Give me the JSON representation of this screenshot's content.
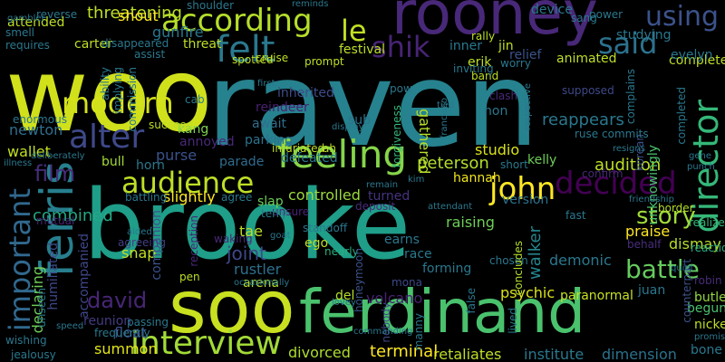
{
  "colors": {
    "background": "#000000",
    "palette": [
      "#fde725",
      "#b5de2b",
      "#6ece58",
      "#35b779",
      "#1f9e89",
      "#26828e",
      "#31688e",
      "#3e4989",
      "#482878",
      "#440154"
    ]
  },
  "words": [
    {
      "text": "raven",
      "color": "#26828e"
    },
    {
      "text": "woo",
      "color": "#d0e11c"
    },
    {
      "text": "brooke",
      "color": "#1f9e89"
    },
    {
      "text": "ferdinand",
      "color": "#4ac16d"
    },
    {
      "text": "soo",
      "color": "#c8e020"
    },
    {
      "text": "rooney",
      "color": "#482878"
    },
    {
      "text": "according",
      "color": "#b5de2b"
    },
    {
      "text": "modern",
      "color": "#d5e21a"
    },
    {
      "text": "felt",
      "color": "#2a788e"
    },
    {
      "text": "le",
      "color": "#c2df23"
    },
    {
      "text": "shik",
      "color": "#482475"
    },
    {
      "text": "said",
      "color": "#2c728e"
    },
    {
      "text": "using",
      "color": "#3b528b"
    },
    {
      "text": "alter",
      "color": "#3e4989"
    },
    {
      "text": "feeling",
      "color": "#86d549"
    },
    {
      "text": "director",
      "color": "#35b779"
    },
    {
      "text": "audience",
      "color": "#bddf26"
    },
    {
      "text": "ferris",
      "color": "#277f8e"
    },
    {
      "text": "important",
      "color": "#31688e"
    },
    {
      "text": "john",
      "color": "#fde725"
    },
    {
      "text": "decided",
      "color": "#440154"
    },
    {
      "text": "film",
      "color": "#472d7b"
    },
    {
      "text": "story",
      "color": "#a0da39"
    },
    {
      "text": "battle",
      "color": "#65cb5e"
    },
    {
      "text": "david",
      "color": "#482677"
    },
    {
      "text": "interview",
      "color": "#a2da37"
    },
    {
      "text": "combined",
      "color": "#22a884"
    },
    {
      "text": "joint",
      "color": "#3e4989"
    },
    {
      "text": "psychic",
      "color": "#d8e219"
    },
    {
      "text": "paranormal",
      "color": "#c5e021"
    },
    {
      "text": "audition",
      "color": "#bddf26"
    },
    {
      "text": "peterson",
      "color": "#b2dd2d"
    },
    {
      "text": "hannah",
      "color": "#f1e51d"
    },
    {
      "text": "raising",
      "color": "#6ece58"
    },
    {
      "text": "controlled",
      "color": "#9bd93c"
    },
    {
      "text": "turned",
      "color": "#46337e"
    },
    {
      "text": "slightly",
      "color": "#fde725"
    },
    {
      "text": "purse",
      "color": "#3b528b"
    },
    {
      "text": "annoyed",
      "color": "#482878"
    },
    {
      "text": "parade",
      "color": "#2f6c8e"
    },
    {
      "text": "parking",
      "color": "#2c728e"
    },
    {
      "text": "await",
      "color": "#2e6f8e"
    },
    {
      "text": "inherited",
      "color": "#3e4c8a"
    },
    {
      "text": "reindeer",
      "color": "#482071"
    },
    {
      "text": "sub",
      "color": "#2c728e"
    },
    {
      "text": "non",
      "color": "#2a788e"
    },
    {
      "text": "reappears",
      "color": "#2a788e"
    },
    {
      "text": "studio",
      "color": "#d8e219"
    },
    {
      "text": "kelly",
      "color": "#6ece58"
    },
    {
      "text": "kang",
      "color": "#7fd34e"
    },
    {
      "text": "unknowingly",
      "color": "#4ac16d"
    },
    {
      "text": "korean",
      "color": "#3b528b"
    },
    {
      "text": "dimension",
      "color": "#2c728e"
    },
    {
      "text": "retaliates",
      "color": "#bddf26"
    },
    {
      "text": "institute",
      "color": "#2a788e"
    },
    {
      "text": "divorced",
      "color": "#addc30"
    },
    {
      "text": "terminal",
      "color": "#fde725"
    },
    {
      "text": "summon",
      "color": "#e2e418"
    },
    {
      "text": "float",
      "color": "#3d4e8a"
    },
    {
      "text": "reunion",
      "color": "#443a83"
    },
    {
      "text": "accompanied",
      "color": "#3f4788"
    },
    {
      "text": "tae",
      "color": "#bddf26"
    },
    {
      "text": "rustler",
      "color": "#2d708e"
    },
    {
      "text": "arena",
      "color": "#b5de2b"
    },
    {
      "text": "snap",
      "color": "#c2df23"
    },
    {
      "text": "del",
      "color": "#b5de2b"
    },
    {
      "text": "volcano",
      "color": "#482173"
    },
    {
      "text": "mona",
      "color": "#3e4989"
    },
    {
      "text": "walker",
      "color": "#24868e"
    },
    {
      "text": "demonic",
      "color": "#2a788e"
    },
    {
      "text": "praise",
      "color": "#fde725"
    },
    {
      "text": "dismay",
      "color": "#b5de2b"
    },
    {
      "text": "juan",
      "color": "#2a788e"
    },
    {
      "text": "bone",
      "color": "#2a788e"
    },
    {
      "text": "begun",
      "color": "#4ac16d"
    },
    {
      "text": "nicked",
      "color": "#bddf26"
    },
    {
      "text": "butler",
      "color": "#93d741"
    },
    {
      "text": "robin",
      "color": "#472c7a"
    },
    {
      "text": "border",
      "color": "#b5de2b"
    },
    {
      "text": "realize",
      "color": "#35b779"
    },
    {
      "text": "reaction",
      "color": "#27ad81"
    },
    {
      "text": "wallet",
      "color": "#c2df23"
    },
    {
      "text": "newton",
      "color": "#2e6e8e"
    },
    {
      "text": "bull",
      "color": "#a2da37"
    },
    {
      "text": "horn",
      "color": "#2a788e"
    },
    {
      "text": "slap",
      "color": "#6ece58"
    },
    {
      "text": "ego",
      "color": "#bddf26"
    },
    {
      "text": "nearly",
      "color": "#29af7f"
    },
    {
      "text": "earns",
      "color": "#2a788e"
    },
    {
      "text": "race",
      "color": "#2a788e"
    },
    {
      "text": "forming",
      "color": "#2a788e"
    },
    {
      "text": "version",
      "color": "#2c728e"
    },
    {
      "text": "gathered",
      "color": "#b5de2b"
    },
    {
      "text": "forgiveness",
      "color": "#35b779"
    },
    {
      "text": "defeated",
      "color": "#2a788e"
    },
    {
      "text": "companion",
      "color": "#3b528b"
    },
    {
      "text": "humiliated",
      "color": "#3e4989"
    },
    {
      "text": "declaring",
      "color": "#6ece58"
    },
    {
      "text": "mutual",
      "color": "#482475"
    },
    {
      "text": "agreeing",
      "color": "#433e85"
    },
    {
      "text": "waking",
      "color": "#482878"
    },
    {
      "text": "reception",
      "color": "#482878"
    },
    {
      "text": "unsure",
      "color": "#482475"
    },
    {
      "text": "deposit",
      "color": "#472c7a"
    },
    {
      "text": "honeymoon",
      "color": "#3b528b"
    },
    {
      "text": "nobody",
      "color": "#3e4989"
    },
    {
      "text": "chosen",
      "color": "#2a788e"
    },
    {
      "text": "false",
      "color": "#2a788e"
    },
    {
      "text": "manny",
      "color": "#2a788e"
    },
    {
      "text": "lived",
      "color": "#2a788e"
    },
    {
      "text": "concludes",
      "color": "#b5de2b"
    },
    {
      "text": "fast",
      "color": "#2a788e"
    },
    {
      "text": "ruse",
      "color": "#2a788e"
    },
    {
      "text": "commits",
      "color": "#2a788e"
    },
    {
      "text": "clash",
      "color": "#482878"
    },
    {
      "text": "supposed",
      "color": "#3e4989"
    },
    {
      "text": "confirm",
      "color": "#482878"
    },
    {
      "text": "behalf",
      "color": "#472d7b"
    },
    {
      "text": "counterpart",
      "color": "#3b528b"
    },
    {
      "text": "quiet",
      "color": "#2a788e"
    },
    {
      "text": "promise",
      "color": "#2a788e"
    },
    {
      "text": "short",
      "color": "#2a788e"
    },
    {
      "text": "completed",
      "color": "#2a788e"
    },
    {
      "text": "gene",
      "color": "#2a788e"
    },
    {
      "text": "punch",
      "color": "#2a788e"
    },
    {
      "text": "friendship",
      "color": "#2a788e"
    },
    {
      "text": "resigns",
      "color": "#2a788e"
    },
    {
      "text": "completely",
      "color": "#bddf26"
    },
    {
      "text": "evelyn",
      "color": "#2a788e"
    },
    {
      "text": "animated",
      "color": "#bddf26"
    },
    {
      "text": "complains",
      "color": "#2a788e"
    },
    {
      "text": "studying",
      "color": "#2a788e"
    },
    {
      "text": "worry",
      "color": "#2a788e"
    },
    {
      "text": "relief",
      "color": "#3b528b"
    },
    {
      "text": "erik",
      "color": "#bddf26"
    },
    {
      "text": "jin",
      "color": "#bddf26"
    },
    {
      "text": "inner",
      "color": "#2a788e"
    },
    {
      "text": "band",
      "color": "#bddf26"
    },
    {
      "text": "inviting",
      "color": "#2a788e"
    },
    {
      "text": "rally",
      "color": "#bddf26"
    },
    {
      "text": "device",
      "color": "#2a788e"
    },
    {
      "text": "sang",
      "color": "#2a788e"
    },
    {
      "text": "power",
      "color": "#2a788e"
    },
    {
      "text": "threatening",
      "color": "#bddf26"
    },
    {
      "text": "attended",
      "color": "#bddf26"
    },
    {
      "text": "shout",
      "color": "#fde725"
    },
    {
      "text": "gunfire",
      "color": "#2a788e"
    },
    {
      "text": "carter",
      "color": "#bddf26"
    },
    {
      "text": "disappeared",
      "color": "#2a788e"
    },
    {
      "text": "threat",
      "color": "#bddf26"
    },
    {
      "text": "festival",
      "color": "#bddf26"
    },
    {
      "text": "spotted",
      "color": "#bddf26"
    },
    {
      "text": "cruise",
      "color": "#bddf26"
    },
    {
      "text": "prompt",
      "color": "#bddf26"
    },
    {
      "text": "assist",
      "color": "#2a788e"
    },
    {
      "text": "requires",
      "color": "#2a788e"
    },
    {
      "text": "reverse",
      "color": "#2a788e"
    },
    {
      "text": "smell",
      "color": "#2a788e"
    },
    {
      "text": "gambler",
      "color": "#2a788e"
    },
    {
      "text": "shoulder",
      "color": "#2a788e"
    },
    {
      "text": "reminds",
      "color": "#2a788e"
    },
    {
      "text": "commission",
      "color": "#2a788e"
    },
    {
      "text": "cab",
      "color": "#2a788e"
    },
    {
      "text": "succeed",
      "color": "#bddf26"
    },
    {
      "text": "pow",
      "color": "#2a788e"
    },
    {
      "text": "first",
      "color": "#2a788e"
    },
    {
      "text": "infuriated",
      "color": "#bddf26"
    },
    {
      "text": "ah",
      "color": "#bddf26"
    },
    {
      "text": "display",
      "color": "#2a788e"
    },
    {
      "text": "tied",
      "color": "#2a788e"
    },
    {
      "text": "francisco",
      "color": "#2a788e"
    },
    {
      "text": "respective",
      "color": "#2a788e"
    },
    {
      "text": "speed",
      "color": "#2a788e"
    },
    {
      "text": "wishing",
      "color": "#2a788e"
    },
    {
      "text": "unseen",
      "color": "#2a788e"
    },
    {
      "text": "jealousy",
      "color": "#2a788e"
    },
    {
      "text": "frequently",
      "color": "#2a788e"
    },
    {
      "text": "passing",
      "color": "#2a788e"
    },
    {
      "text": "commanding",
      "color": "#2a788e"
    },
    {
      "text": "occasionally",
      "color": "#2a788e"
    },
    {
      "text": "pen",
      "color": "#bddf26"
    },
    {
      "text": "terry",
      "color": "#2a788e"
    },
    {
      "text": "standoff",
      "color": "#2a788e"
    },
    {
      "text": "remain",
      "color": "#2a788e"
    },
    {
      "text": "attendant",
      "color": "#2a788e"
    },
    {
      "text": "illness",
      "color": "#2a788e"
    },
    {
      "text": "deliberately",
      "color": "#2a788e"
    },
    {
      "text": "enormous",
      "color": "#2a788e"
    },
    {
      "text": "implying",
      "color": "#2a788e"
    },
    {
      "text": "ability",
      "color": "#2a788e"
    },
    {
      "text": "agree",
      "color": "#2a788e"
    },
    {
      "text": "battling",
      "color": "#2a788e"
    },
    {
      "text": "aided",
      "color": "#2a788e"
    },
    {
      "text": "goat",
      "color": "#2a788e"
    },
    {
      "text": "lovey",
      "color": "#2a788e"
    },
    {
      "text": "kim",
      "color": "#2a788e"
    }
  ]
}
